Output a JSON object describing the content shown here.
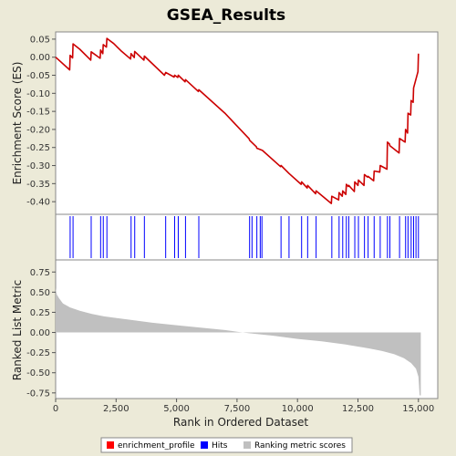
{
  "chart_data": {
    "type": "line",
    "title": "GSEA_Results",
    "xlabel": "Rank in Ordered Dataset",
    "xlim": [
      0,
      15800
    ],
    "x_ticks": [
      0,
      2500,
      5000,
      7500,
      10000,
      12500,
      15000
    ],
    "x_tick_labels": [
      "0",
      "2,500",
      "5,000",
      "7,500",
      "10,000",
      "12,500",
      "15,000"
    ],
    "top_panel": {
      "ylabel": "Enrichment Score (ES)",
      "ylim": [
        -0.435,
        0.07
      ],
      "y_ticks": [
        0.05,
        0.0,
        -0.05,
        -0.1,
        -0.15,
        -0.2,
        -0.25,
        -0.3,
        -0.35,
        -0.4
      ],
      "y_tick_labels": [
        "0.05",
        "0.00",
        "-0.05",
        "-0.10",
        "-0.15",
        "-0.20",
        "-0.25",
        "-0.30",
        "-0.35",
        "-0.40"
      ],
      "series": [
        {
          "name": "enrichment_profile",
          "color": "#cc0000",
          "x": [
            0,
            580,
            600,
            700,
            720,
            1000,
            1450,
            1470,
            1840,
            1860,
            1950,
            1970,
            2100,
            2120,
            2400,
            2700,
            3100,
            3120,
            3250,
            3270,
            3650,
            3670,
            4500,
            4550,
            4900,
            4920,
            5050,
            5070,
            5350,
            5370,
            5900,
            5920,
            7000,
            8000,
            8020,
            8300,
            8320,
            8550,
            9300,
            9320,
            9650,
            10150,
            10170,
            10400,
            10420,
            10750,
            10770,
            11400,
            11420,
            11700,
            11720,
            11850,
            11870,
            12000,
            12020,
            12100,
            12120,
            12350,
            12370,
            12500,
            12520,
            12750,
            12770,
            12900,
            12920,
            13150,
            13170,
            13400,
            13420,
            13700,
            13720,
            13800,
            13820,
            14200,
            14220,
            14450,
            14470,
            14550,
            14570,
            14680,
            14700,
            14780,
            14800,
            14980,
            15000
          ],
          "y": [
            0.0,
            -0.035,
            0.005,
            -0.002,
            0.037,
            0.022,
            -0.008,
            0.015,
            -0.003,
            0.02,
            0.01,
            0.035,
            0.028,
            0.052,
            0.038,
            0.018,
            -0.005,
            0.01,
            -0.001,
            0.016,
            -0.008,
            0.003,
            -0.05,
            -0.042,
            -0.055,
            -0.05,
            -0.056,
            -0.05,
            -0.068,
            -0.062,
            -0.095,
            -0.09,
            -0.155,
            -0.226,
            -0.23,
            -0.248,
            -0.252,
            -0.258,
            -0.303,
            -0.3,
            -0.322,
            -0.352,
            -0.345,
            -0.362,
            -0.355,
            -0.378,
            -0.37,
            -0.405,
            -0.385,
            -0.395,
            -0.375,
            -0.385,
            -0.37,
            -0.38,
            -0.352,
            -0.358,
            -0.355,
            -0.372,
            -0.345,
            -0.355,
            -0.34,
            -0.355,
            -0.325,
            -0.332,
            -0.33,
            -0.342,
            -0.315,
            -0.318,
            -0.3,
            -0.31,
            -0.235,
            -0.24,
            -0.245,
            -0.265,
            -0.225,
            -0.235,
            -0.2,
            -0.21,
            -0.155,
            -0.16,
            -0.12,
            -0.125,
            -0.085,
            -0.04,
            0.01
          ]
        }
      ]
    },
    "hits_panel": {
      "name": "Hits",
      "color": "#0000ff",
      "x": [
        600,
        720,
        1470,
        1860,
        1970,
        2120,
        3120,
        3270,
        3670,
        4550,
        4920,
        5070,
        5370,
        5920,
        8020,
        8120,
        8320,
        8460,
        8530,
        9320,
        9650,
        10170,
        10420,
        10770,
        11420,
        11720,
        11870,
        12020,
        12120,
        12370,
        12520,
        12770,
        12920,
        13170,
        13420,
        13720,
        13820,
        14220,
        14470,
        14570,
        14700,
        14800,
        14900,
        15000
      ]
    },
    "bottom_panel": {
      "ylabel": "Ranked List Metric",
      "ylim": [
        -0.82,
        0.9
      ],
      "y_ticks": [
        0.75,
        0.5,
        0.25,
        0.0,
        -0.25,
        -0.5,
        -0.75
      ],
      "y_tick_labels": [
        "0.75",
        "0.50",
        "0.25",
        "0.00",
        "-0.25",
        "-0.50",
        "-0.75"
      ],
      "series": [
        {
          "name": "Ranking metric scores",
          "color": "#c0c0c0",
          "x": [
            0,
            50,
            150,
            300,
            600,
            1000,
            1500,
            2000,
            3000,
            4000,
            5000,
            6000,
            7000,
            7500,
            8000,
            9000,
            10000,
            11000,
            12000,
            13000,
            13500,
            14000,
            14400,
            14700,
            14900,
            15000,
            15050,
            15100
          ],
          "y": [
            0.55,
            0.47,
            0.42,
            0.36,
            0.31,
            0.27,
            0.23,
            0.2,
            0.16,
            0.12,
            0.09,
            0.06,
            0.03,
            0.01,
            -0.01,
            -0.04,
            -0.08,
            -0.11,
            -0.15,
            -0.2,
            -0.23,
            -0.27,
            -0.32,
            -0.38,
            -0.45,
            -0.55,
            -0.78,
            -0.78
          ]
        }
      ]
    },
    "legend": {
      "placement": "bottom",
      "items": [
        {
          "label": "enrichment_profile",
          "color": "#ff0000"
        },
        {
          "label": "Hits",
          "color": "#0000ff"
        },
        {
          "label": "Ranking metric scores",
          "color": "#c0c0c0"
        }
      ]
    }
  }
}
